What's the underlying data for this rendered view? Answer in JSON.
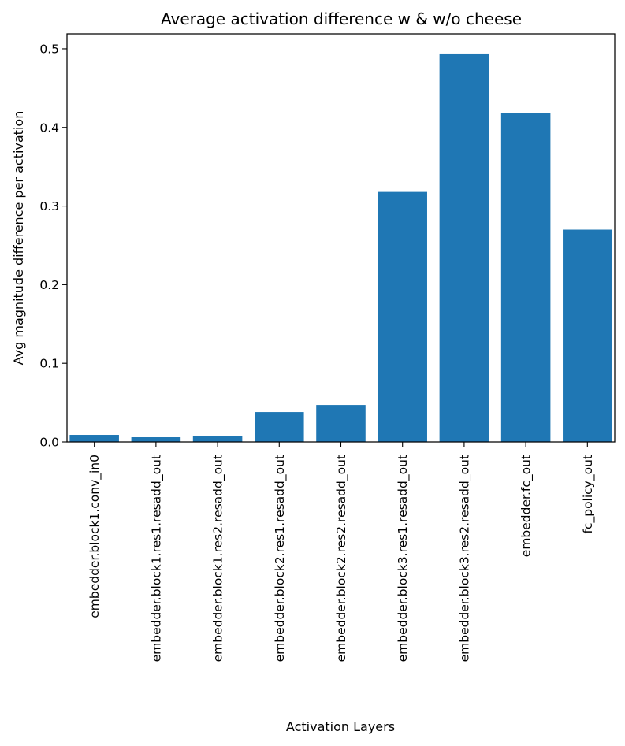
{
  "chart_data": {
    "type": "bar",
    "title": "Average activation difference w & w/o cheese",
    "xlabel": "Activation Layers",
    "ylabel": "Avg magnitude difference per activation",
    "categories": [
      "embedder.block1.conv_in0",
      "embedder.block1.res1.resadd_out",
      "embedder.block1.res2.resadd_out",
      "embedder.block2.res1.resadd_out",
      "embedder.block2.res2.resadd_out",
      "embedder.block3.res1.resadd_out",
      "embedder.block3.res2.resadd_out",
      "embedder.fc_out",
      "fc_policy_out"
    ],
    "values": [
      0.009,
      0.006,
      0.008,
      0.038,
      0.047,
      0.318,
      0.494,
      0.418,
      0.27
    ],
    "ylim": [
      0,
      0.519
    ],
    "yticks": [
      0.0,
      0.1,
      0.2,
      0.3,
      0.4,
      0.5
    ],
    "ytick_labels": [
      "0.0",
      "0.1",
      "0.2",
      "0.3",
      "0.4",
      "0.5"
    ],
    "bar_color": "#1f77b4",
    "grid": false,
    "legend": "none"
  }
}
